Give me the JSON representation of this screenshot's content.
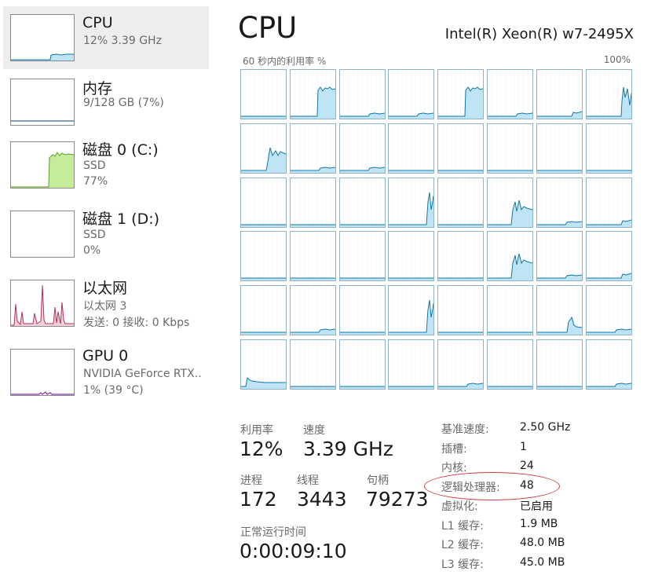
{
  "sidebar": {
    "items": [
      {
        "title": "CPU",
        "sub1": "12%  3.39 GHz",
        "sub2": "",
        "sub3": ""
      },
      {
        "title": "内存",
        "sub1": "9/128 GB (7%)",
        "sub2": "",
        "sub3": ""
      },
      {
        "title": "磁盘 0 (C:)",
        "sub1": "SSD",
        "sub2": "77%",
        "sub3": ""
      },
      {
        "title": "磁盘 1 (D:)",
        "sub1": "SSD",
        "sub2": "0%",
        "sub3": ""
      },
      {
        "title": "以太网",
        "sub1": "以太网 3",
        "sub2": "发送: 0  接收: 0 Kbps",
        "sub3": ""
      },
      {
        "title": "GPU 0",
        "sub1": "NVIDIA GeForce RTX..",
        "sub2": "1% (39 °C)",
        "sub3": ""
      }
    ]
  },
  "main": {
    "title": "CPU",
    "model": "Intel(R) Xeon(R) w7-2495X",
    "graph_caption": "60 秒内的利用率 %",
    "graph_max": "100%",
    "logical_processor_count": 48
  },
  "stats": {
    "utilization_label": "利用率",
    "utilization_value": "12%",
    "speed_label": "速度",
    "speed_value": "3.39 GHz",
    "processes_label": "进程",
    "processes_value": "172",
    "threads_label": "线程",
    "threads_value": "3443",
    "handles_label": "句柄",
    "handles_value": "79273",
    "uptime_label": "正常运行时间",
    "uptime_value": "0:00:09:10"
  },
  "specs": [
    {
      "label": "基准速度:",
      "value": "2.50 GHz"
    },
    {
      "label": "插槽:",
      "value": "1"
    },
    {
      "label": "内核:",
      "value": "24"
    },
    {
      "label": "逻辑处理器:",
      "value": "48"
    },
    {
      "label": "虚拟化:",
      "value": "已启用"
    },
    {
      "label": "L1 缓存:",
      "value": "1.9 MB"
    },
    {
      "label": "L2 缓存:",
      "value": "48.0 MB"
    },
    {
      "label": "L3 缓存:",
      "value": "45.0 MB"
    }
  ],
  "colors": {
    "cpu_line": "#1178a8",
    "cpu_fill": "#bfe4f3",
    "memory_line": "#5a7fb0",
    "disk_line": "#5e9e2a",
    "disk_fill": "#c6ec9a",
    "ethernet_line": "#b03060",
    "ethernet_fill": "#f0d0dc",
    "gpu_line": "#8a2aa8",
    "highlight": "#d13b3b"
  }
}
